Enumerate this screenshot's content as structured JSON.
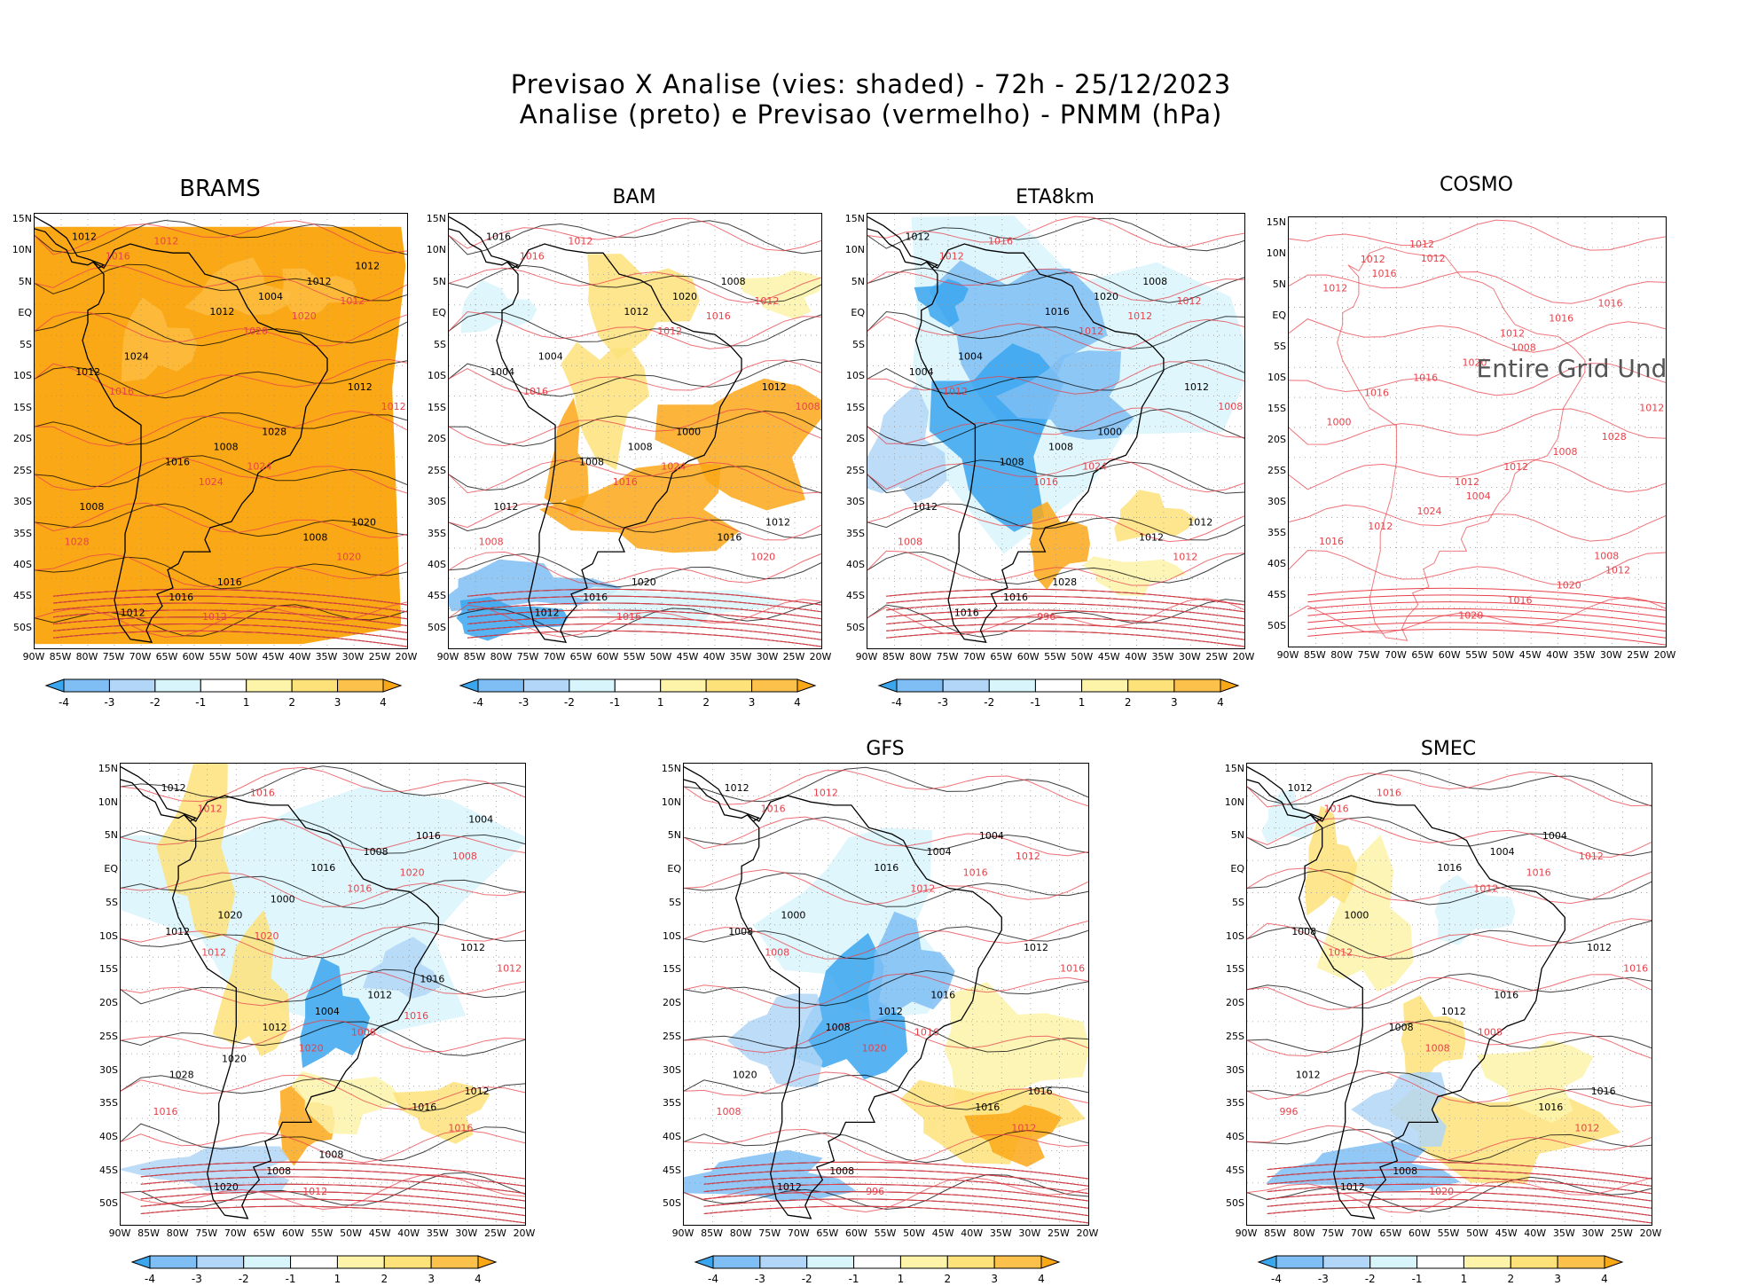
{
  "header": {
    "line1": "Previsao X Analise (vies: shaded) - 72h - 25/12/2023",
    "line2": "Analise (preto) e Previsao (vermelho) - PNMM (hPa)"
  },
  "axes": {
    "lat_labels": [
      "15N",
      "10N",
      "5N",
      "EQ",
      "5S",
      "10S",
      "15S",
      "20S",
      "25S",
      "30S",
      "35S",
      "40S",
      "45S",
      "50S"
    ],
    "lon_labels": [
      "90W",
      "85W",
      "80W",
      "75W",
      "70W",
      "65W",
      "60W",
      "55W",
      "50W",
      "45W",
      "40W",
      "35W",
      "30W",
      "25W",
      "20W"
    ]
  },
  "colorbar": {
    "ticks": [
      "-4",
      "-3",
      "-2",
      "-1",
      "1",
      "2",
      "3",
      "4"
    ],
    "colors": [
      "#3aa6ee",
      "#7fbef4",
      "#b1d6f7",
      "#d8f5fb",
      "#ffffff",
      "#fdf3a9",
      "#fde27a",
      "#fcc14a",
      "#fba817"
    ]
  },
  "colors": {
    "analysis": "#000000",
    "forecast": "#e8414a",
    "undef_text": "#555555"
  },
  "panels": [
    {
      "id": "brams",
      "title": "BRAMS",
      "style": "brams",
      "labels_black": [
        "1012",
        "1012",
        "1012",
        "1016",
        "1008",
        "1012",
        "1004",
        "1012",
        "1008",
        "1020",
        "1016",
        "1012",
        "1024",
        "1028",
        "1008",
        "1016",
        "1012"
      ],
      "labels_red": [
        "1016",
        "1020",
        "1012",
        "1024",
        "1020",
        "1012",
        "1020",
        "1016",
        "1024",
        "1028",
        "1012",
        "1012"
      ]
    },
    {
      "id": "bam",
      "title": "BAM",
      "style": "bam",
      "labels_black": [
        "1016",
        "1012",
        "1012",
        "1008",
        "1016",
        "1012",
        "1020",
        "1004",
        "1008",
        "1012",
        "1016",
        "1008",
        "1004",
        "1000",
        "1012",
        "1020"
      ],
      "labels_red": [
        "1016",
        "1012",
        "1008",
        "1016",
        "1020",
        "1012",
        "1016",
        "1016",
        "1024",
        "1008",
        "1016",
        "1012"
      ]
    },
    {
      "id": "eta8km",
      "title": "ETA8km",
      "style": "eta",
      "labels_black": [
        "1012",
        "1016",
        "1012",
        "1008",
        "1012",
        "1016",
        "1020",
        "1004",
        "1008",
        "1012",
        "1016",
        "1008",
        "1004",
        "1000",
        "1012",
        "1028"
      ],
      "labels_red": [
        "1012",
        "1012",
        "1008",
        "1016",
        "1012",
        "1016",
        "1012",
        "1012",
        "1024",
        "1008",
        "996",
        "1012"
      ]
    },
    {
      "id": "cosmo",
      "title": "COSMO",
      "style": "cosmo",
      "undef": "Entire Grid Und",
      "labels_black": [],
      "labels_red": [
        "1012",
        "1012",
        "1012",
        "1012",
        "1008",
        "1012",
        "1016",
        "1016",
        "1012",
        "1016",
        "1020",
        "1016",
        "1016",
        "1008",
        "1012",
        "1016",
        "1012",
        "1020",
        "1028",
        "1024",
        "1020",
        "1016",
        "1008",
        "1000",
        "1004",
        "1012",
        "1012"
      ]
    },
    {
      "id": "unnamed",
      "title": "",
      "style": "mixed",
      "labels_black": [
        "1012",
        "1016",
        "1012",
        "1012",
        "1016",
        "1020",
        "1008",
        "1012",
        "1004",
        "1012",
        "1008",
        "1016",
        "1020",
        "1012",
        "1028",
        "1008",
        "1004",
        "1000",
        "1016",
        "1020"
      ],
      "labels_red": [
        "1012",
        "1016",
        "1012",
        "1020",
        "1016",
        "1016",
        "1020",
        "1012",
        "1008",
        "1016",
        "1012",
        "1008",
        "1020",
        "1016"
      ]
    },
    {
      "id": "gfs",
      "title": "GFS",
      "style": "gfs",
      "labels_black": [
        "1012",
        "1016",
        "1012",
        "1008",
        "1016",
        "1012",
        "1004",
        "1008",
        "1012",
        "1016",
        "1008",
        "1004",
        "1000",
        "1016",
        "1020"
      ],
      "labels_red": [
        "1016",
        "1012",
        "1016",
        "1020",
        "1012",
        "1012",
        "1016",
        "1008",
        "1016",
        "1008",
        "996",
        "1012"
      ]
    },
    {
      "id": "smec",
      "title": "SMEC",
      "style": "smec",
      "labels_black": [
        "1012",
        "1016",
        "1012",
        "1008",
        "1016",
        "1012",
        "1004",
        "1008",
        "1012",
        "1016",
        "1008",
        "1004",
        "1000",
        "1016",
        "1012"
      ],
      "labels_red": [
        "1016",
        "1012",
        "1016",
        "1008",
        "1012",
        "1016",
        "1016",
        "1012",
        "1008",
        "996",
        "1020",
        "1012"
      ]
    }
  ]
}
